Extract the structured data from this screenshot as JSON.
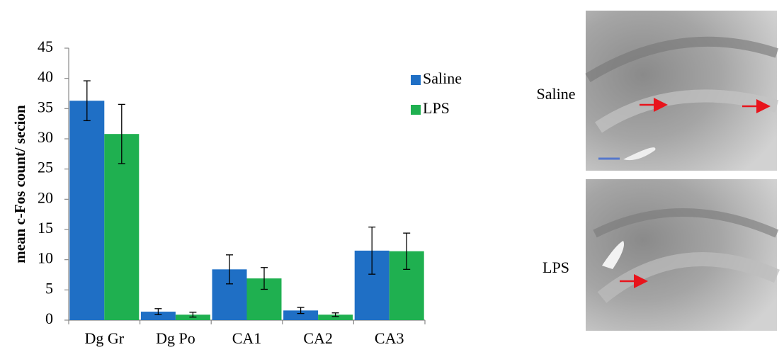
{
  "chart_data": {
    "type": "bar",
    "y_label": "mean c-Fos count/ secion",
    "categories": [
      "Dg Gr",
      "Dg Po",
      "CA1",
      "CA2",
      "CA3"
    ],
    "series": [
      {
        "name": "Saline",
        "color": "#1f6fc5",
        "values": [
          36.3,
          1.4,
          8.4,
          1.6,
          11.5
        ],
        "errors": [
          3.3,
          0.5,
          2.4,
          0.5,
          3.9
        ]
      },
      {
        "name": "LPS",
        "color": "#1fb050",
        "values": [
          30.8,
          0.9,
          6.9,
          0.9,
          11.4
        ],
        "errors": [
          4.9,
          0.4,
          1.8,
          0.3,
          3.0
        ]
      }
    ],
    "ylim": [
      0,
      45
    ],
    "yticks": [
      0,
      5,
      10,
      15,
      20,
      25,
      30,
      35,
      40,
      45
    ],
    "grid": false,
    "legend": "upper right"
  },
  "images": {
    "labels": [
      "Saline",
      "LPS"
    ]
  }
}
